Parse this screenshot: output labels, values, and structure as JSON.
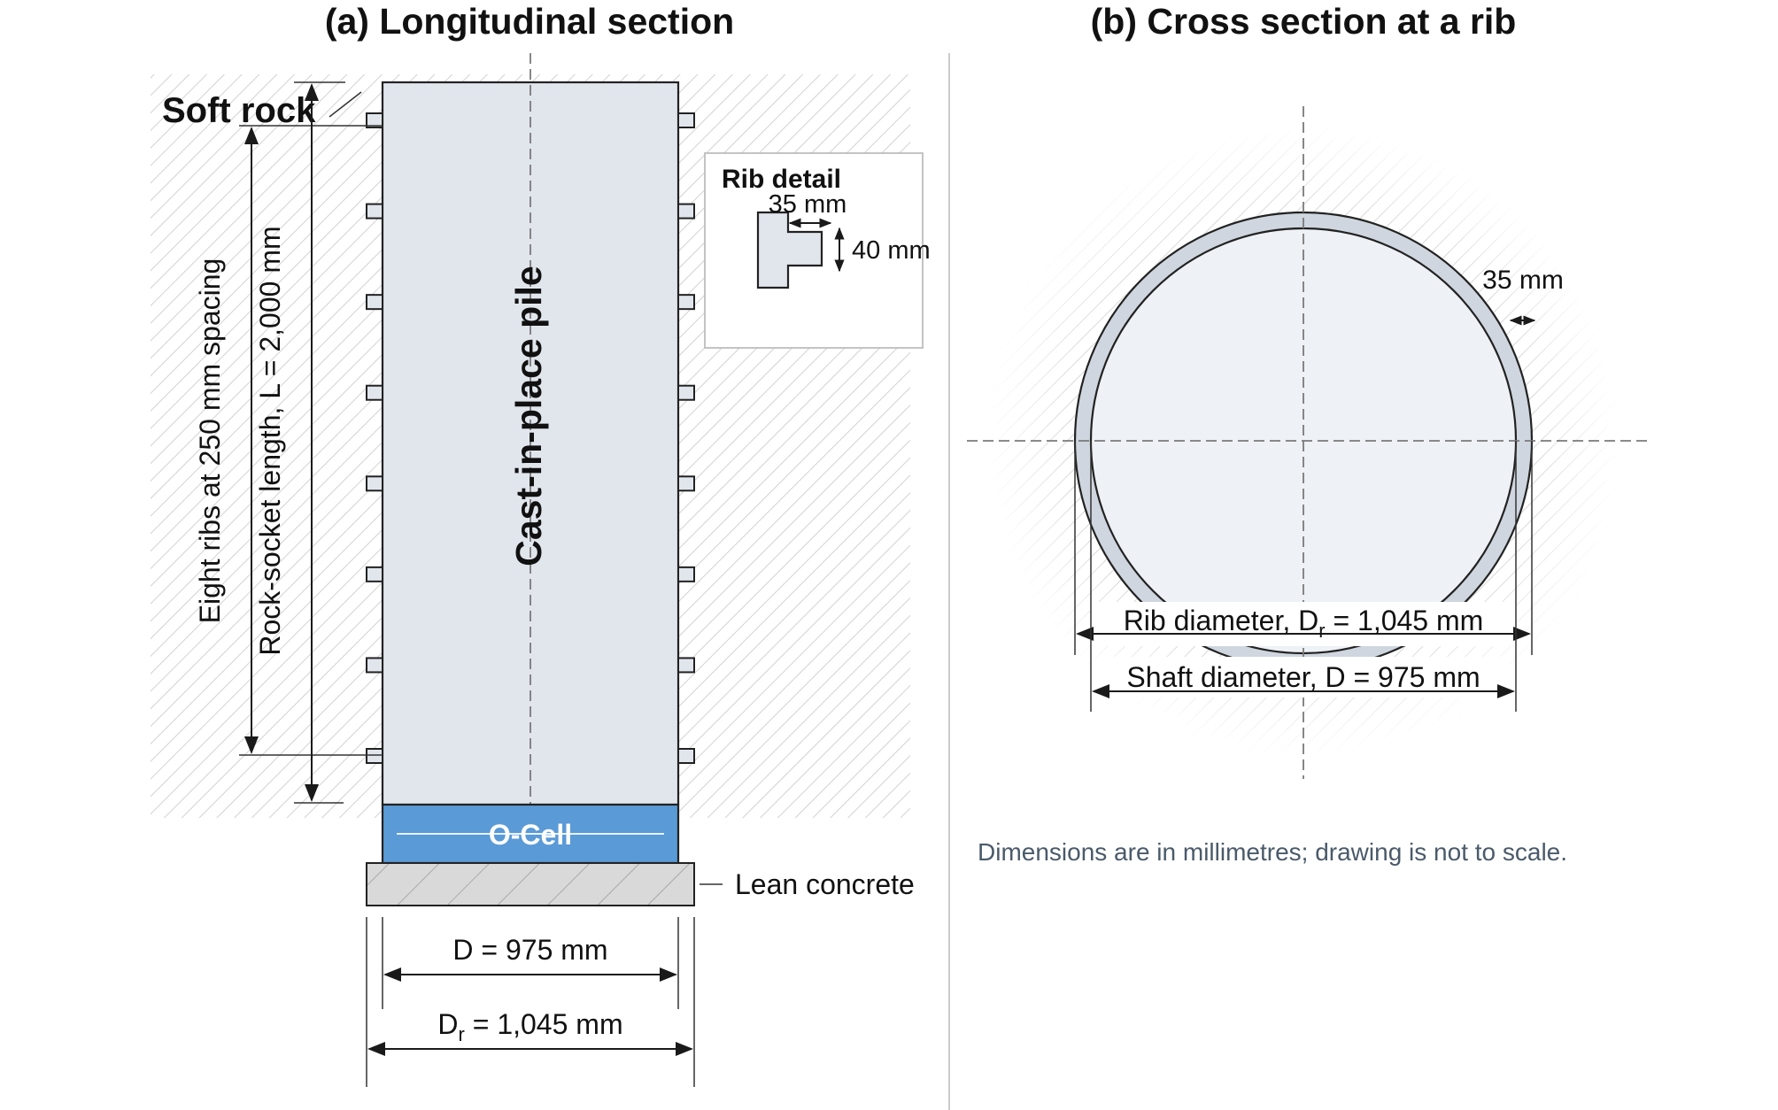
{
  "panel_a": {
    "title": "(a) Longitudinal section",
    "soft_rock": "Soft rock",
    "pile_label": "Cast-in-place pile",
    "rib_spacing_label": "Eight ribs at 250 mm spacing",
    "socket_length_label": "Rock-socket length, L = 2,000 mm",
    "rib_detail": {
      "title": "Rib detail",
      "width": "35 mm",
      "height": "40 mm"
    },
    "ocell": "O-Cell",
    "lean_concrete": "Lean concrete",
    "dim_d": "D = 975 mm",
    "dim_dr_main": "D",
    "dim_dr_sub": "r",
    "dim_dr_rest": " = 1,045 mm",
    "rib_count": 8
  },
  "panel_b": {
    "title": "(b) Cross section at a rib",
    "rib_thickness": "35 mm",
    "rib_diameter_main": "Rib diameter, D",
    "rib_diameter_sub": "r",
    "rib_diameter_rest": " = 1,045 mm",
    "shaft_diameter": "Shaft diameter, D = 975 mm"
  },
  "note": "Dimensions are in millimetres; drawing is not to scale.",
  "colors": {
    "pile_fill": "#e1e6ed",
    "ocell_fill": "#5a9ad6",
    "hatch": "#cfcfcf",
    "lean_fill": "#d9d9d9"
  }
}
